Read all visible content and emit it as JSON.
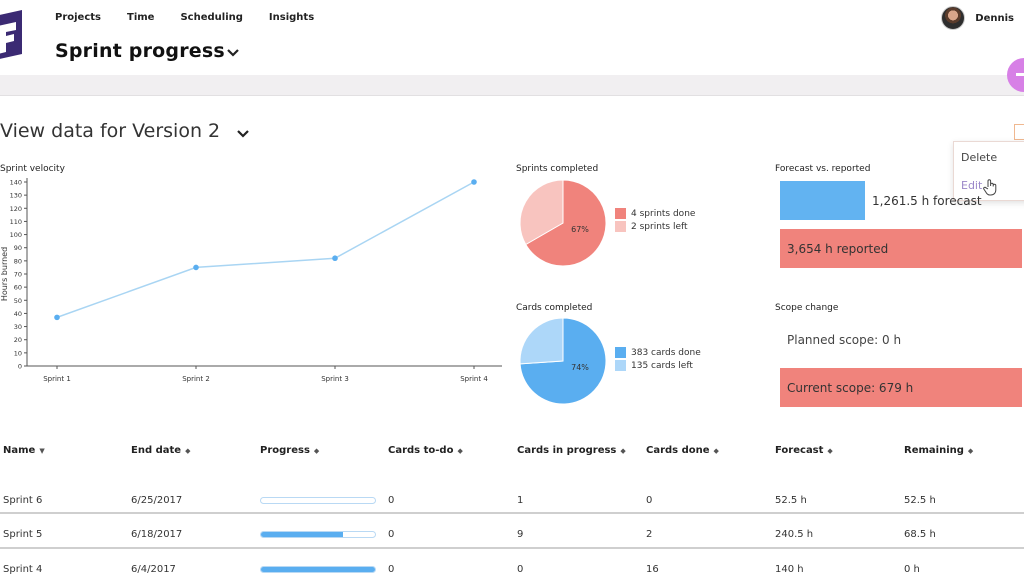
{
  "nav": {
    "items": [
      "Projects",
      "Time",
      "Scheduling",
      "Insights"
    ]
  },
  "page": {
    "title": "Sprint progress"
  },
  "user": {
    "name": "Dennis"
  },
  "version": {
    "title": "View data for Version 2"
  },
  "menu": {
    "delete": "Delete",
    "edit": "Edit"
  },
  "velocity": {
    "title": "Sprint velocity",
    "chart_data": {
      "type": "line",
      "categories": [
        "Sprint 1",
        "Sprint 2",
        "Sprint 3",
        "Sprint 4"
      ],
      "values": [
        37,
        75,
        82,
        140
      ],
      "title": "Sprint velocity",
      "xlabel": "",
      "ylabel": "Hours burned",
      "ylim": [
        0,
        140
      ],
      "yticks": [
        0,
        10,
        20,
        30,
        40,
        50,
        60,
        70,
        80,
        90,
        100,
        110,
        120,
        130,
        140
      ]
    }
  },
  "sprints_pie": {
    "title": "Sprints completed",
    "chart_data": {
      "type": "pie",
      "labels": [
        "4 sprints done",
        "2 sprints left"
      ],
      "values": [
        4,
        2
      ],
      "center_label": "67%",
      "colors": [
        "#f0837c",
        "#f8c4bf"
      ]
    }
  },
  "cards_pie": {
    "title": "Cards completed",
    "chart_data": {
      "type": "pie",
      "labels": [
        "383 cards done",
        "135 cards left"
      ],
      "values": [
        383,
        135
      ],
      "center_label": "74%",
      "colors": [
        "#5aaef0",
        "#add7f9"
      ]
    }
  },
  "forecast": {
    "title": "Forecast vs. reported",
    "forecast_label": "1,261.5 h forecast",
    "reported_label": "3,654 h reported"
  },
  "scope": {
    "title": "Scope change",
    "planned_label": "Planned scope: 0 h",
    "current_label": "Current scope: 679 h"
  },
  "table": {
    "headers": [
      "Name",
      "End date",
      "Progress",
      "Cards to-do",
      "Cards in progress",
      "Cards done",
      "Forecast",
      "Remaining"
    ],
    "rows": [
      {
        "name": "Sprint 6",
        "end_date": "6/25/2017",
        "progress": 0.0,
        "todo": "0",
        "in_progress": "1",
        "done": "0",
        "forecast": "52.5 h",
        "remaining": "52.5 h"
      },
      {
        "name": "Sprint 5",
        "end_date": "6/18/2017",
        "progress": 0.72,
        "todo": "0",
        "in_progress": "9",
        "done": "2",
        "forecast": "240.5 h",
        "remaining": "68.5 h"
      },
      {
        "name": "Sprint 4",
        "end_date": "6/4/2017",
        "progress": 1.0,
        "todo": "0",
        "in_progress": "0",
        "done": "16",
        "forecast": "140 h",
        "remaining": "0 h"
      }
    ]
  },
  "colors": {
    "accent_purple": "#3b2a73",
    "fab": "#d780e6",
    "blue": "#62b3f1",
    "red": "#f0837c"
  }
}
